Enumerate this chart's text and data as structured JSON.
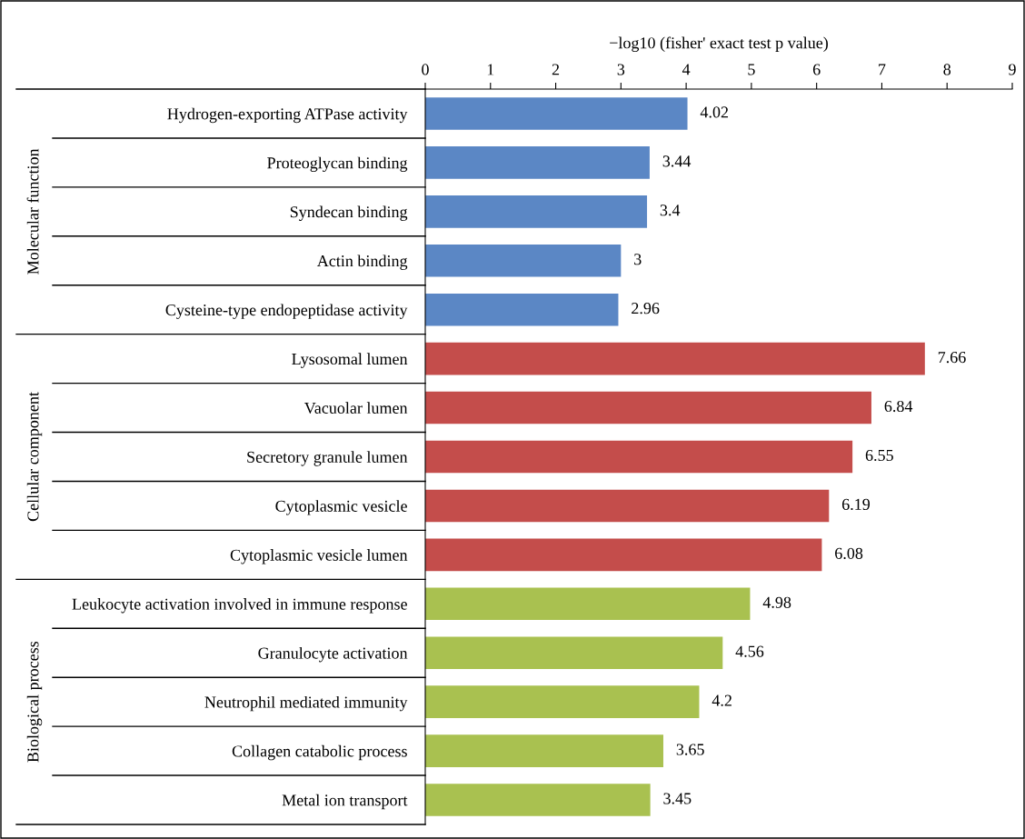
{
  "chart_data": {
    "type": "bar",
    "orientation": "horizontal",
    "xlabel": "−log10 (fisher' exact test p value)",
    "categories": [
      "Hydrogen-exporting ATPase activity",
      "Proteoglycan binding",
      "Syndecan binding",
      "Actin binding",
      "Cysteine-type endopeptidase activity",
      "Lysosomal lumen",
      "Vacuolar lumen",
      "Secretory granule lumen",
      "Cytoplasmic vesicle",
      "Cytoplasmic vesicle lumen",
      "Leukocyte activation involved in immune response",
      "Granulocyte activation",
      "Neutrophil mediated immunity",
      "Collagen catabolic process",
      "Metal ion transport"
    ],
    "series": [
      {
        "color": "#5b87c5",
        "values": [
          4.02,
          3.44,
          3.4,
          3,
          2.96,
          null,
          null,
          null,
          null,
          null,
          null,
          null,
          null,
          null,
          null
        ]
      },
      {
        "color": "#c44d4b",
        "values": [
          null,
          null,
          null,
          null,
          null,
          7.66,
          6.84,
          6.55,
          6.19,
          6.08,
          null,
          null,
          null,
          null,
          null
        ]
      },
      {
        "color": "#a9c150",
        "values": [
          null,
          null,
          null,
          null,
          null,
          null,
          null,
          null,
          null,
          null,
          4.98,
          4.56,
          4.2,
          3.65,
          3.45
        ]
      }
    ],
    "xlim": [
      0,
      9
    ],
    "xticks": [
      0,
      1,
      2,
      3,
      4,
      5,
      6,
      7,
      8,
      9
    ],
    "annotations": [
      "Molecular function",
      "Cellular component",
      "Biological process"
    ],
    "data_labels": true,
    "grid": false,
    "legend": false
  }
}
